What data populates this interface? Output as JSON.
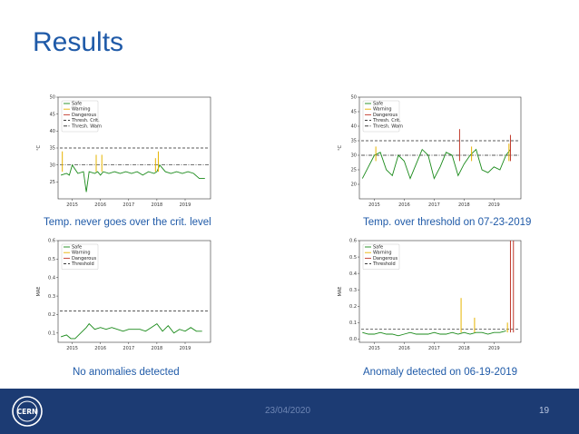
{
  "slide": {
    "title": "Results",
    "date": "23/04/2020",
    "page_number": "19",
    "colors": {
      "title": "#1f5aa8",
      "footer": "#1c3b73",
      "caption": "#1f5aa8"
    }
  },
  "legend_labels": {
    "safe": "Safe",
    "warning": "Warning",
    "dangerous": "Dangerous",
    "thresh_crit": "Thresh. Crit.",
    "thresh_warn": "Thresh. Warn",
    "threshold": "Threshold"
  },
  "chart_data": [
    {
      "type": "line",
      "caption": "Temp. never goes over the crit. level",
      "ylabel": "°C",
      "xlim": [
        2014.5,
        2019.9
      ],
      "ylim": [
        20,
        50
      ],
      "yticks": [
        25,
        30,
        35,
        40,
        45,
        50
      ],
      "xticks": [
        "2015",
        "2016",
        "2017",
        "2018",
        "2019"
      ],
      "thresholds": {
        "crit": 35,
        "warn": 30
      },
      "series": [
        {
          "name": "Safe",
          "color": "#1a8a1a",
          "x": [
            2014.6,
            2014.8,
            2014.9,
            2015.0,
            2015.2,
            2015.4,
            2015.5,
            2015.6,
            2015.8,
            2015.9,
            2016.0,
            2016.1,
            2016.3,
            2016.5,
            2016.7,
            2016.9,
            2017.1,
            2017.3,
            2017.5,
            2017.7,
            2017.9,
            2018.0,
            2018.1,
            2018.3,
            2018.5,
            2018.7,
            2018.9,
            2019.1,
            2019.3,
            2019.5,
            2019.7
          ],
          "y": [
            27,
            27.5,
            27,
            30,
            27.5,
            28,
            22,
            28,
            27.5,
            28,
            27,
            28,
            27.5,
            28,
            27.5,
            28,
            27.5,
            28,
            27,
            28,
            27.5,
            28,
            30,
            28,
            27.5,
            28,
            27.5,
            28,
            27.5,
            26,
            26
          ]
        },
        {
          "name": "Warning",
          "color": "#e6b400",
          "spikes": [
            [
              2014.65,
              34
            ],
            [
              2015.85,
              33
            ],
            [
              2016.05,
              33
            ],
            [
              2017.95,
              32
            ],
            [
              2018.05,
              34
            ]
          ]
        },
        {
          "name": "Dangerous",
          "color": "#c0392b",
          "spikes": []
        }
      ]
    },
    {
      "type": "line",
      "caption": "Temp. over threshold on 07-23-2019",
      "ylabel": "°C",
      "xlim": [
        2014.5,
        2019.9
      ],
      "ylim": [
        15,
        50
      ],
      "yticks": [
        20,
        25,
        30,
        35,
        40,
        45,
        50
      ],
      "xticks": [
        "2015",
        "2016",
        "2017",
        "2018",
        "2019"
      ],
      "thresholds": {
        "crit": 35,
        "warn": 30
      },
      "series": [
        {
          "name": "Safe",
          "color": "#1a8a1a",
          "x": [
            2014.6,
            2014.8,
            2015.0,
            2015.2,
            2015.4,
            2015.6,
            2015.8,
            2016.0,
            2016.2,
            2016.4,
            2016.6,
            2016.8,
            2017.0,
            2017.2,
            2017.4,
            2017.6,
            2017.8,
            2018.0,
            2018.2,
            2018.4,
            2018.6,
            2018.8,
            2019.0,
            2019.2,
            2019.4,
            2019.55
          ],
          "y": [
            22,
            26,
            30,
            31,
            25,
            23,
            30,
            28,
            22,
            27,
            32,
            30,
            22,
            26,
            31,
            30,
            23,
            27,
            30,
            32,
            25,
            24,
            26,
            25,
            30,
            32
          ]
        },
        {
          "name": "Warning",
          "color": "#e6b400",
          "spikes": [
            [
              2015.05,
              33
            ],
            [
              2018.25,
              33
            ],
            [
              2019.5,
              34
            ]
          ]
        },
        {
          "name": "Dangerous",
          "color": "#c0392b",
          "spikes": [
            [
              2017.85,
              39
            ],
            [
              2019.55,
              37
            ]
          ]
        }
      ]
    },
    {
      "type": "line",
      "caption": "No anomalies detected",
      "ylabel": "MAE",
      "xlim": [
        2014.5,
        2019.9
      ],
      "ylim": [
        0.05,
        0.6
      ],
      "yticks": [
        0.1,
        0.2,
        0.3,
        0.4,
        0.5,
        0.6
      ],
      "xticks": [
        "2015",
        "2016",
        "2017",
        "2018",
        "2019"
      ],
      "thresholds": {
        "threshold": 0.22
      },
      "series": [
        {
          "name": "Safe",
          "color": "#1a8a1a",
          "x": [
            2014.6,
            2014.8,
            2014.95,
            2015.1,
            2015.3,
            2015.5,
            2015.6,
            2015.8,
            2016.0,
            2016.2,
            2016.4,
            2016.6,
            2016.8,
            2017.0,
            2017.2,
            2017.4,
            2017.6,
            2017.8,
            2018.0,
            2018.2,
            2018.4,
            2018.6,
            2018.8,
            2019.0,
            2019.2,
            2019.4,
            2019.6
          ],
          "y": [
            0.08,
            0.09,
            0.07,
            0.07,
            0.1,
            0.13,
            0.15,
            0.12,
            0.13,
            0.12,
            0.13,
            0.12,
            0.11,
            0.12,
            0.12,
            0.12,
            0.11,
            0.13,
            0.15,
            0.11,
            0.14,
            0.1,
            0.12,
            0.11,
            0.13,
            0.11,
            0.11
          ]
        },
        {
          "name": "Warning",
          "color": "#e6b400",
          "spikes": []
        },
        {
          "name": "Dangerous",
          "color": "#c0392b",
          "spikes": []
        }
      ]
    },
    {
      "type": "line",
      "caption": "Anomaly detected on 06-19-2019",
      "ylabel": "MAE",
      "xlim": [
        2014.5,
        2019.9
      ],
      "ylim": [
        -0.02,
        0.6
      ],
      "yticks": [
        0.0,
        0.1,
        0.2,
        0.3,
        0.4,
        0.5,
        0.6
      ],
      "xticks": [
        "2015",
        "2016",
        "2017",
        "2018",
        "2019"
      ],
      "thresholds": {
        "threshold": 0.06
      },
      "series": [
        {
          "name": "Safe",
          "color": "#1a8a1a",
          "x": [
            2014.6,
            2014.8,
            2015.0,
            2015.2,
            2015.4,
            2015.6,
            2015.8,
            2016.0,
            2016.2,
            2016.4,
            2016.6,
            2016.8,
            2017.0,
            2017.2,
            2017.4,
            2017.6,
            2017.8,
            2018.0,
            2018.2,
            2018.4,
            2018.6,
            2018.8,
            2019.0,
            2019.2,
            2019.4
          ],
          "y": [
            0.04,
            0.03,
            0.03,
            0.04,
            0.03,
            0.03,
            0.02,
            0.03,
            0.04,
            0.03,
            0.03,
            0.03,
            0.04,
            0.03,
            0.03,
            0.04,
            0.03,
            0.04,
            0.03,
            0.04,
            0.04,
            0.03,
            0.04,
            0.04,
            0.05
          ]
        },
        {
          "name": "Warning",
          "color": "#e6b400",
          "spikes": [
            [
              2017.9,
              0.25
            ],
            [
              2018.35,
              0.13
            ],
            [
              2019.45,
              0.1
            ]
          ]
        },
        {
          "name": "Dangerous",
          "color": "#c0392b",
          "spikes": [
            [
              2019.55,
              0.6
            ],
            [
              2019.65,
              0.6
            ]
          ]
        }
      ]
    }
  ]
}
